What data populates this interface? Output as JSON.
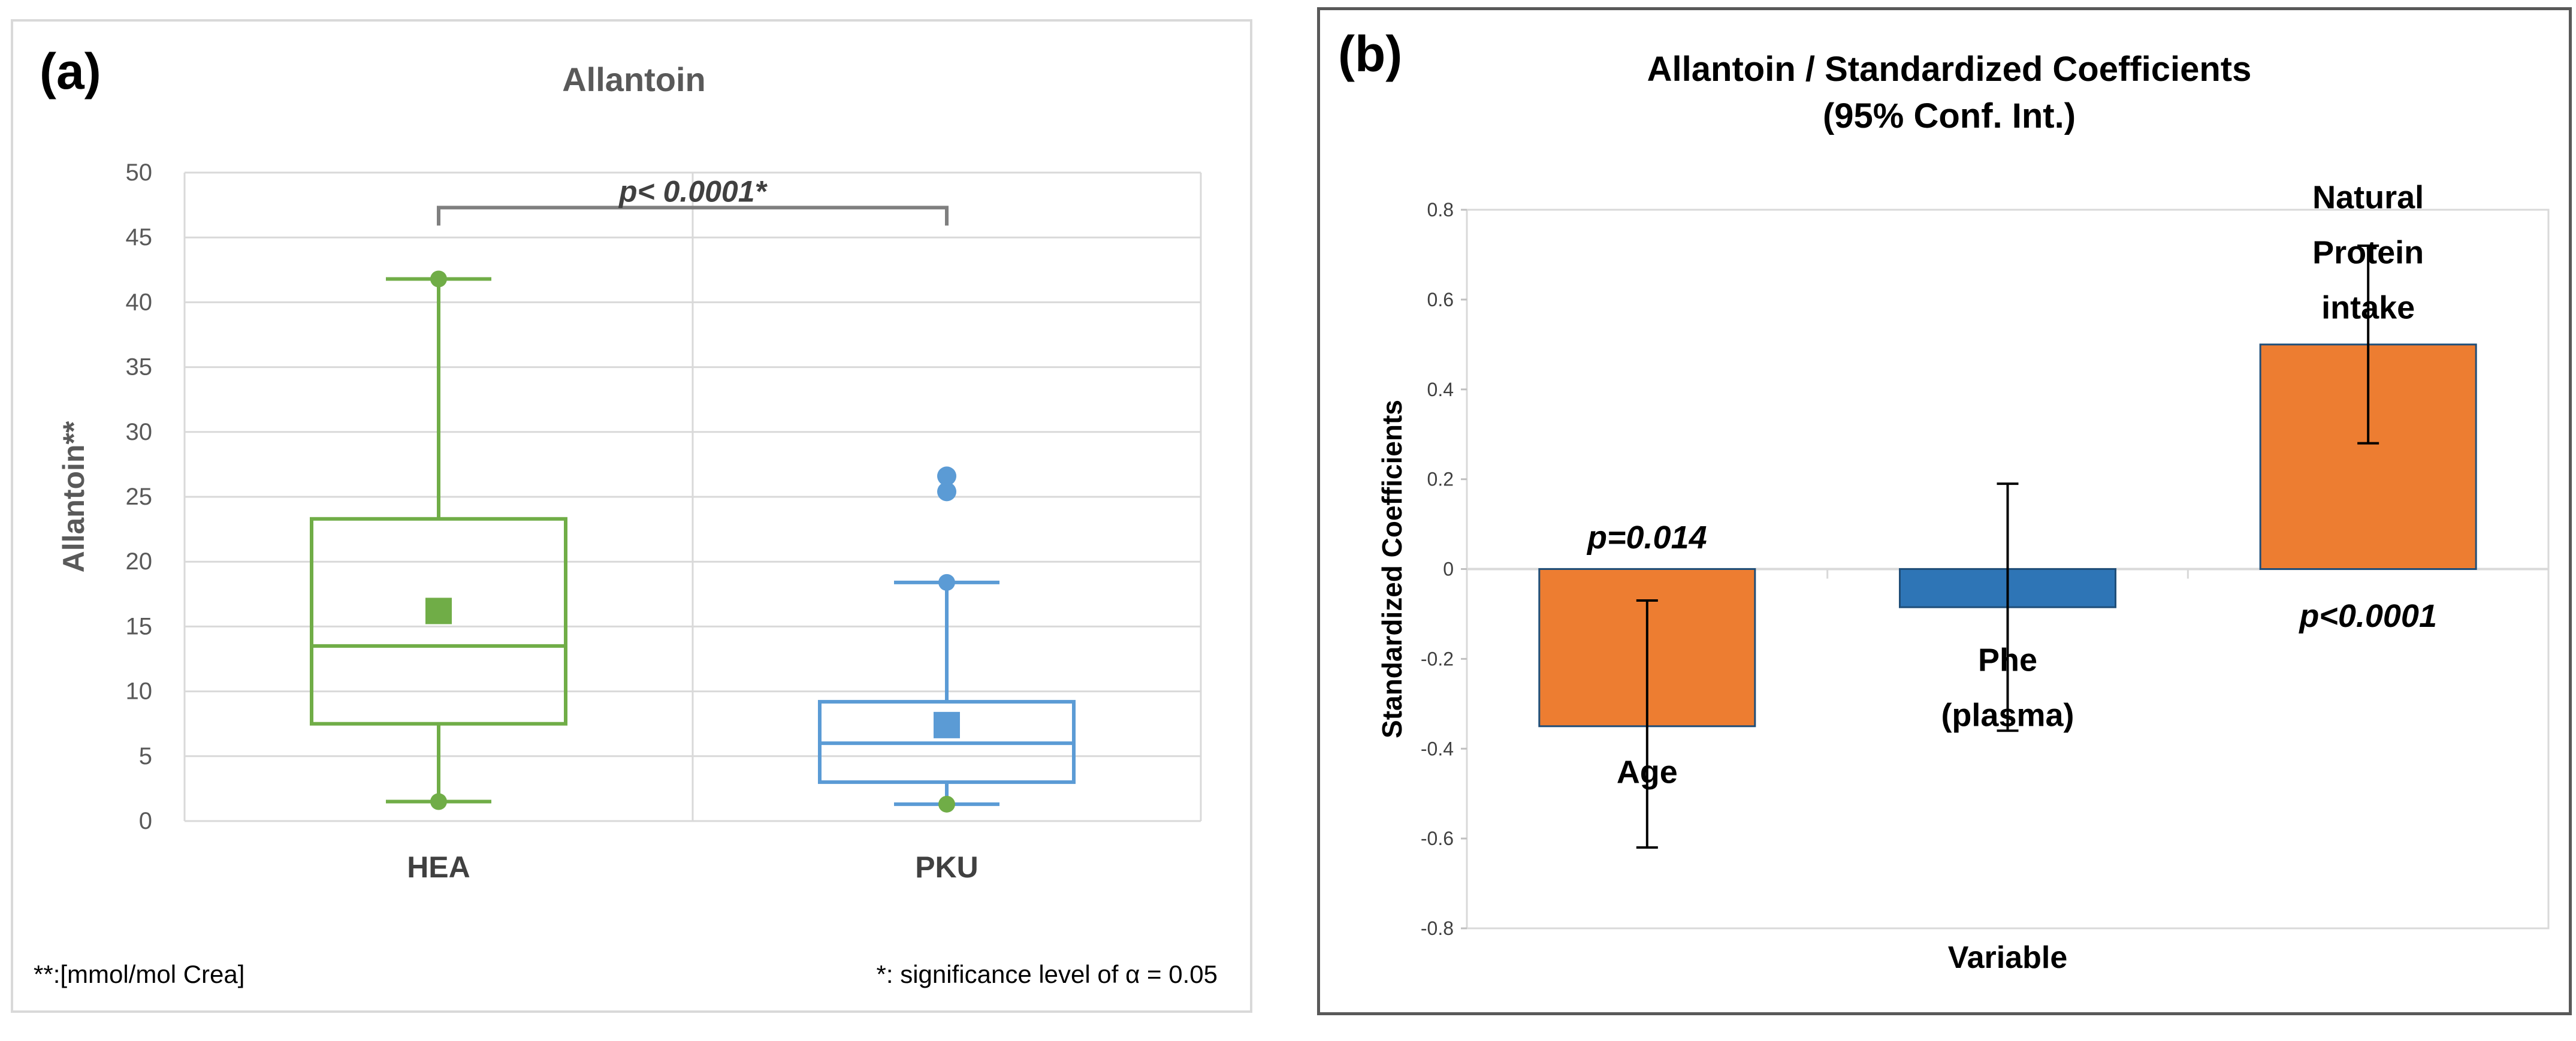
{
  "chart_data": [
    {
      "panel_label": "(a)",
      "type": "boxplot",
      "title": "Allantoin",
      "ylabel": "Allantoin**",
      "xlabel": "",
      "ylim": [
        0,
        50
      ],
      "yticks": [
        0,
        5,
        10,
        15,
        20,
        25,
        30,
        35,
        40,
        45,
        50
      ],
      "grid": true,
      "categories": [
        "HEA",
        "PKU"
      ],
      "series": [
        {
          "name": "HEA",
          "color": "#70ad47",
          "whisker_low": 1.5,
          "q1": 7.5,
          "median": 13.5,
          "q3": 23.3,
          "whisker_high": 41.8,
          "mean": 16.2,
          "outliers": []
        },
        {
          "name": "PKU",
          "color": "#5b9bd5",
          "whisker_low": 1.3,
          "q1": 3.0,
          "median": 6.0,
          "q3": 9.2,
          "whisker_high": 18.4,
          "mean": 7.4,
          "outliers": [
            25.4,
            26.6
          ],
          "min_marker_color": "#70ad47"
        }
      ],
      "significance": {
        "text": "p< 0.0001*",
        "y": 47.3
      },
      "footnote_left": "**:[mmol/mol Crea]",
      "footnote_right": "*:  significance level of α = 0.05"
    },
    {
      "panel_label": "(b)",
      "type": "bar",
      "title": "Allantoin  /  Standardized Coefficients",
      "subtitle": "(95% Conf. Int.)",
      "ylabel": "Standardized Coefficients",
      "xlabel": "Variable",
      "ylim": [
        -0.8,
        0.8
      ],
      "yticks": [
        -0.8,
        -0.6,
        -0.4,
        -0.2,
        0,
        0.2,
        0.4,
        0.6,
        0.8
      ],
      "ytick_labels": [
        "-0.8",
        "-0.6",
        "-0.4",
        "-0.2",
        "0",
        "0.2",
        "0.4",
        "0.6",
        "0.8"
      ],
      "grid": false,
      "bars": [
        {
          "name_lines": [
            "Age"
          ],
          "value": -0.35,
          "ci": [
            -0.62,
            -0.07
          ],
          "color": "#ed7d31",
          "pvalue": "p=0.014",
          "label_y": -0.45,
          "pvalue_y": 0.07
        },
        {
          "name_lines": [
            "Phe",
            "(plasma)"
          ],
          "value": -0.085,
          "ci": [
            -0.36,
            0.19
          ],
          "color": "#2e75b6",
          "pvalue": "",
          "label_y": -0.2,
          "pvalue_y": 0
        },
        {
          "name_lines": [
            "Natural",
            "Protein",
            "intake"
          ],
          "value": 0.5,
          "ci": [
            0.28,
            0.72
          ],
          "color": "#ed7d31",
          "pvalue": "p<0.0001",
          "label_y": 0.83,
          "pvalue_y": -0.105
        }
      ]
    }
  ]
}
